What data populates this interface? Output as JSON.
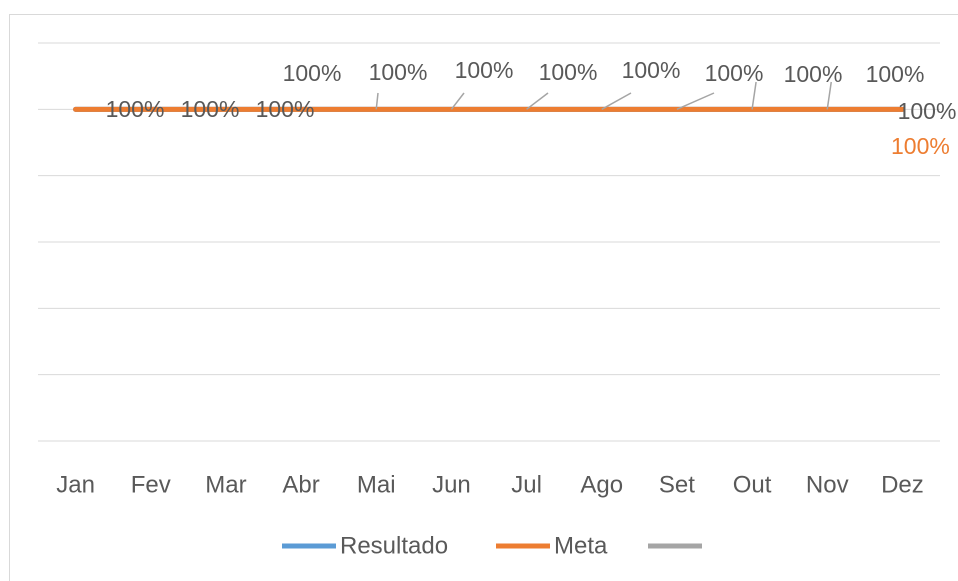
{
  "chart_data": {
    "type": "line",
    "categories": [
      "Jan",
      "Fev",
      "Mar",
      "Abr",
      "Mai",
      "Jun",
      "Jul",
      "Ago",
      "Set",
      "Out",
      "Nov",
      "Dez"
    ],
    "series": [
      {
        "name": "Resultado",
        "color": "#5b9bd5",
        "values": [
          100,
          100,
          100,
          100,
          100,
          100,
          100,
          100,
          100,
          100,
          100,
          100
        ],
        "value_labels": [
          "100%",
          "100%",
          "100%",
          "100%",
          "100%",
          "100%",
          "100%",
          "100%",
          "100%",
          "100%",
          "100%",
          "100%"
        ]
      },
      {
        "name": "Meta",
        "color": "#ed7d31",
        "values": [
          100,
          100,
          100,
          100,
          100,
          100,
          100,
          100,
          100,
          100,
          100,
          100
        ],
        "value_labels": [
          null,
          null,
          null,
          null,
          null,
          null,
          null,
          null,
          null,
          null,
          null,
          "100%"
        ]
      },
      {
        "color": "#a5a5a5",
        "values": [
          100,
          100,
          100,
          100,
          100,
          100,
          100,
          100,
          100,
          100,
          100,
          100
        ]
      }
    ],
    "ylim": [
      0,
      120
    ],
    "yticks": [
      0,
      20,
      40,
      60,
      80,
      100,
      120
    ],
    "grid": true,
    "legend": "bottom"
  }
}
